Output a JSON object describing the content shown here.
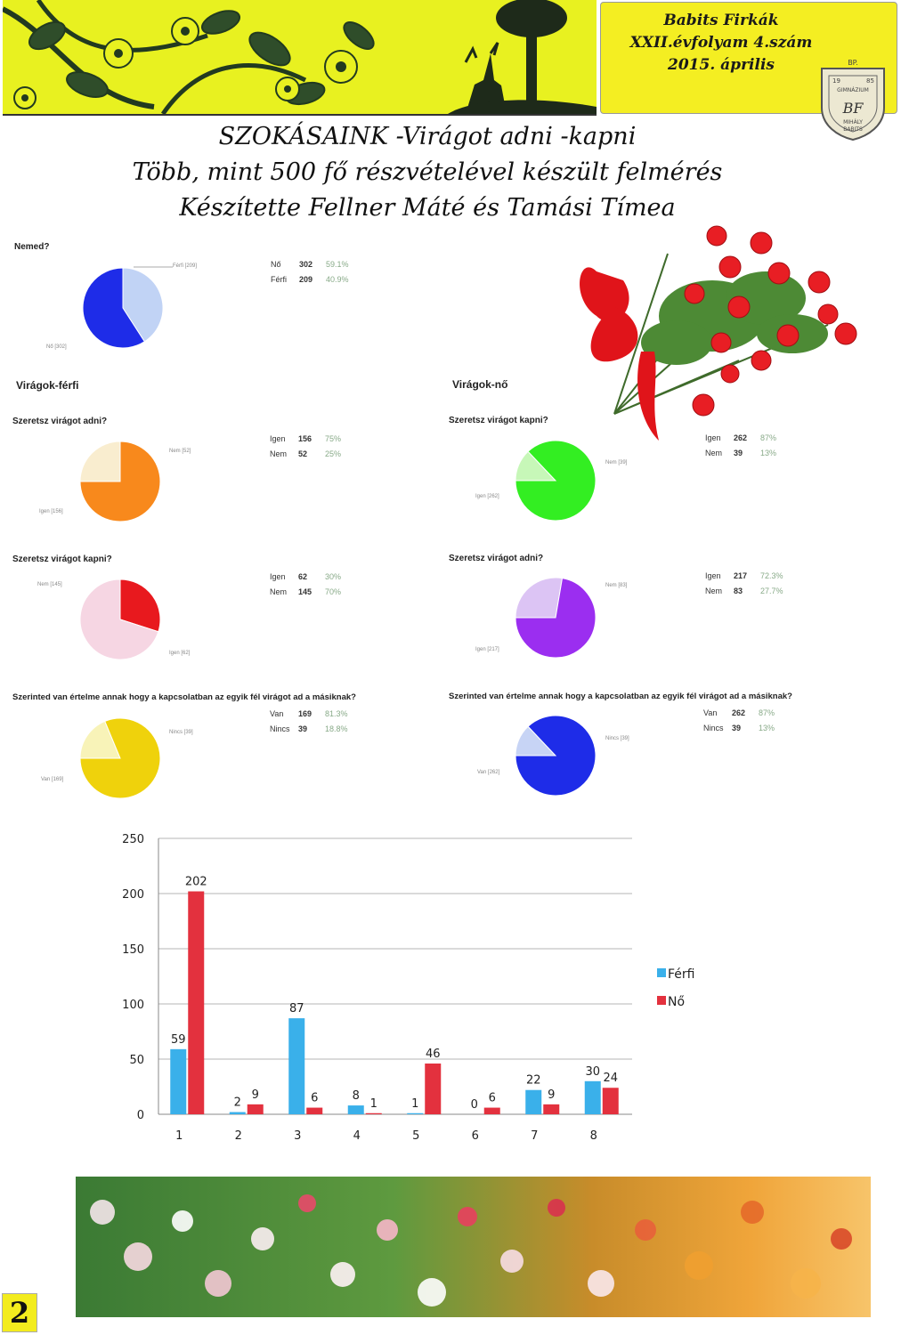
{
  "header": {
    "magazine": "Babits Firkák",
    "issue": "XXII.évfolyam  4.szám",
    "date": "2015. április",
    "seal": {
      "top": "BP.",
      "left_year": "19",
      "right_year": "85",
      "word1": "GIMNÁZIUM",
      "word2": "MIHÁLY",
      "word3": "BABITS",
      "initials": "BF"
    }
  },
  "title": {
    "line1": "SZOKÁSAINK -Virágot adni -kapni",
    "line2": "Több, mint 500 fő részvételével készült felmérés",
    "line3": "Készítette Fellner Máté és Tamási Tímea"
  },
  "gender": {
    "question": "Nemed?",
    "rows": [
      {
        "label": "Nő",
        "count": "302",
        "pct": "59.1%",
        "value": 302,
        "color": "#1e2ce8"
      },
      {
        "label": "Férfi",
        "count": "209",
        "pct": "40.9%",
        "value": 209,
        "color": "#c1d3f5"
      }
    ],
    "slice_labels": {
      "a": "Férfi [209]",
      "b": "Nő [302]"
    }
  },
  "men": {
    "section": "Virágok-férfi",
    "q1": {
      "question": "Szeretsz virágot adni?",
      "rows": [
        {
          "label": "Igen",
          "count": "156",
          "pct": "75%",
          "value": 156,
          "color": "#f8891c"
        },
        {
          "label": "Nem",
          "count": "52",
          "pct": "25%",
          "value": 52,
          "color": "#f9edcf"
        }
      ],
      "slice_labels": {
        "a": "Nem [52]",
        "b": "Igen [156]"
      }
    },
    "q2": {
      "question": "Szeretsz virágot kapni?",
      "rows": [
        {
          "label": "Igen",
          "count": "62",
          "pct": "30%",
          "value": 62,
          "color": "#e8191e"
        },
        {
          "label": "Nem",
          "count": "145",
          "pct": "70%",
          "value": 145,
          "color": "#f6d6e3"
        }
      ],
      "slice_labels": {
        "a": "Nem [145]",
        "b": "Igen [62]"
      }
    },
    "q3": {
      "question": "Szerinted van értelme annak hogy a kapcsolatban az egyik fél virágot ad a másiknak?",
      "rows": [
        {
          "label": "Van",
          "count": "169",
          "pct": "81.3%",
          "value": 169,
          "color": "#efd20c"
        },
        {
          "label": "Nincs",
          "count": "39",
          "pct": "18.8%",
          "value": 39,
          "color": "#f8f3b8"
        }
      ],
      "slice_labels": {
        "a": "Nincs [39]",
        "b": "Van [169]"
      }
    }
  },
  "women": {
    "section": "Virágok-nő",
    "q1": {
      "question": "Szeretsz virágot kapni?",
      "rows": [
        {
          "label": "Igen",
          "count": "262",
          "pct": "87%",
          "value": 262,
          "color": "#33ee22"
        },
        {
          "label": "Nem",
          "count": "39",
          "pct": "13%",
          "value": 39,
          "color": "#c7f7b8"
        }
      ],
      "slice_labels": {
        "a": "Nem [39]",
        "b": "Igen [262]"
      }
    },
    "q2": {
      "question": "Szeretsz virágot adni?",
      "rows": [
        {
          "label": "Igen",
          "count": "217",
          "pct": "72.3%",
          "value": 217,
          "color": "#9b2ef0"
        },
        {
          "label": "Nem",
          "count": "83",
          "pct": "27.7%",
          "value": 83,
          "color": "#dcc4f4"
        }
      ],
      "slice_labels": {
        "a": "Nem [83]",
        "b": "Igen [217]"
      }
    },
    "q3": {
      "question": "Szerinted van értelme annak hogy a kapcsolatban az egyik fél virágot ad a másiknak?",
      "rows": [
        {
          "label": "Van",
          "count": "262",
          "pct": "87%",
          "value": 262,
          "color": "#1e2ce8"
        },
        {
          "label": "Nincs",
          "count": "39",
          "pct": "13%",
          "value": 39,
          "color": "#c7d4f5"
        }
      ],
      "slice_labels": {
        "a": "Nincs [39]",
        "b": "Van [262]"
      }
    }
  },
  "chart_data": {
    "type": "bar",
    "categories": [
      "1",
      "2",
      "3",
      "4",
      "5",
      "6",
      "7",
      "8"
    ],
    "series": [
      {
        "name": "Férfi",
        "values": [
          59,
          2,
          87,
          8,
          1,
          0,
          22,
          30
        ],
        "color": "#3ab0ea"
      },
      {
        "name": "Nő",
        "values": [
          202,
          9,
          6,
          1,
          46,
          6,
          9,
          24
        ],
        "color": "#e3313e"
      }
    ],
    "yticks": [
      "0",
      "50",
      "100",
      "150",
      "200",
      "250"
    ],
    "ylim": [
      0,
      250
    ],
    "grid": true,
    "legend": "right"
  },
  "page": {
    "number": "2"
  }
}
